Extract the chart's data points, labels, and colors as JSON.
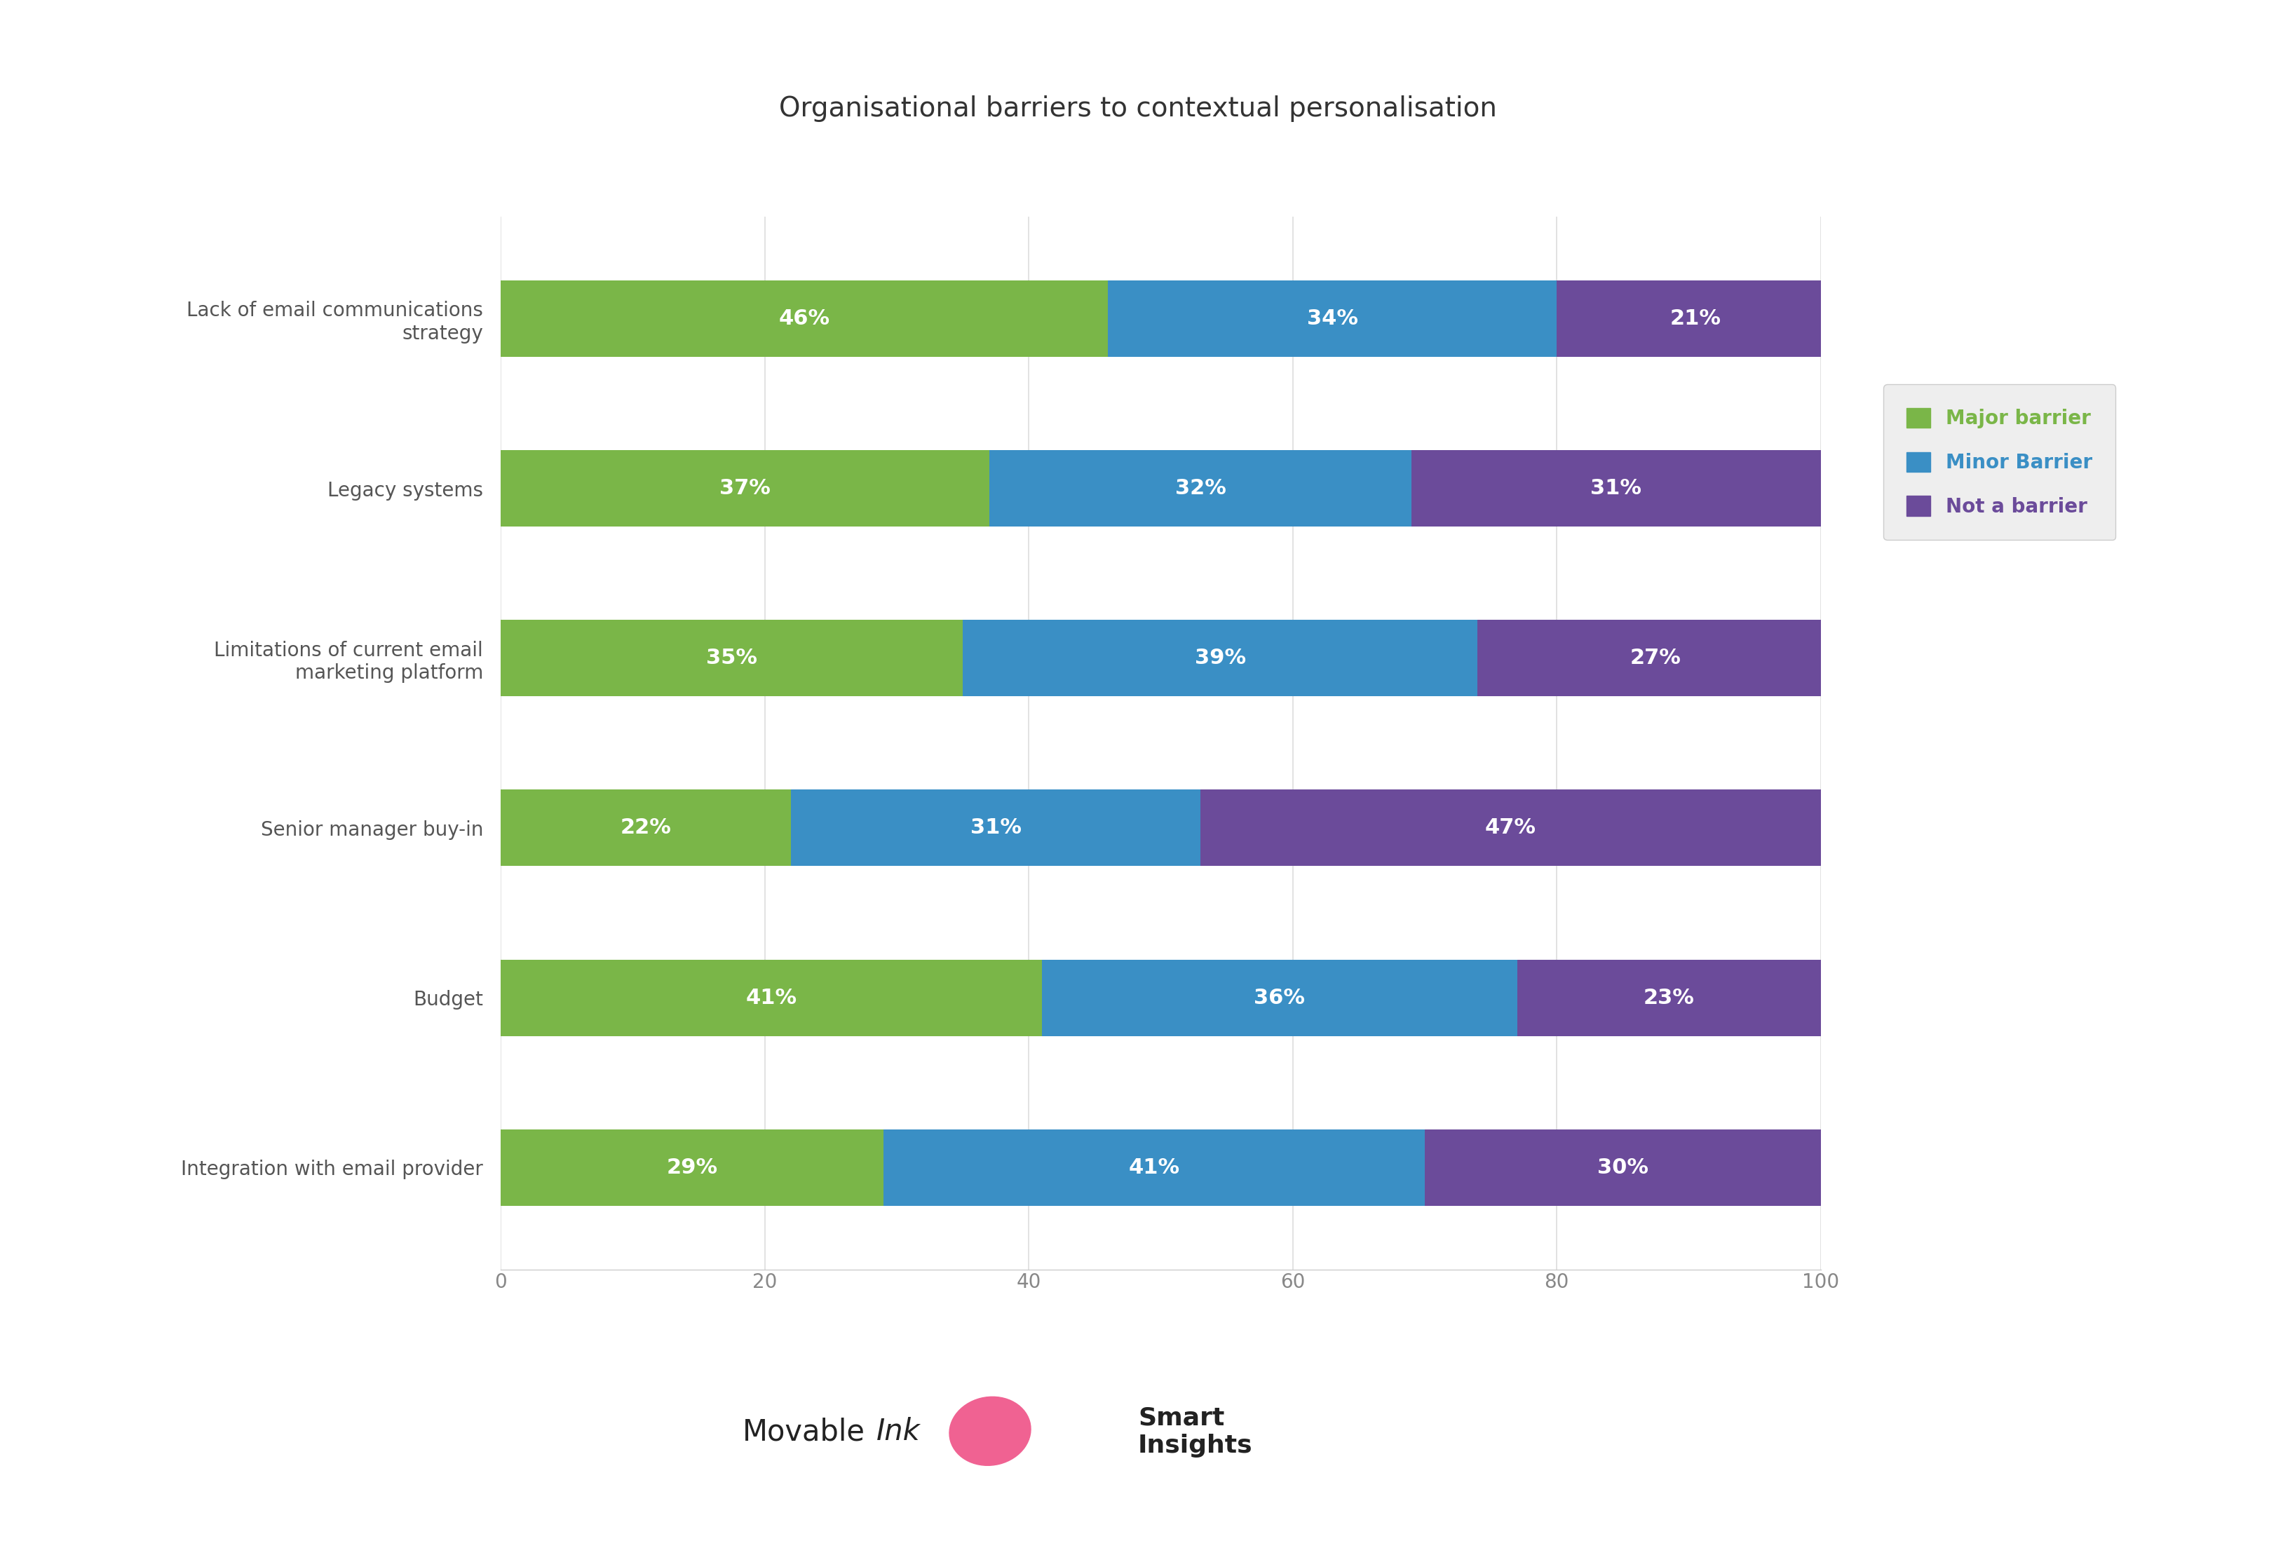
{
  "title": "Organisational barriers to contextual personalisation",
  "categories": [
    "Lack of email communications\nstrategy",
    "Legacy systems",
    "Limitations of current email\nmarketing platform",
    "Senior manager buy-in",
    "Budget",
    "Integration with email provider"
  ],
  "major_barrier": [
    46,
    37,
    35,
    22,
    41,
    29
  ],
  "minor_barrier": [
    34,
    32,
    39,
    31,
    36,
    41
  ],
  "not_a_barrier": [
    21,
    31,
    27,
    47,
    23,
    30
  ],
  "colors": {
    "major": "#7ab648",
    "minor": "#3a8fc5",
    "not": "#6b4b9a"
  },
  "legend_labels": [
    "Major barrier",
    "Minor Barrier",
    "Not a barrier"
  ],
  "legend_label_colors": [
    "#7ab648",
    "#3a8fc5",
    "#6b4b9a"
  ],
  "xlim": [
    0,
    100
  ],
  "xticks": [
    0,
    20,
    40,
    60,
    80,
    100
  ],
  "background_color": "#ffffff",
  "bar_height": 0.45,
  "title_fontsize": 28,
  "label_fontsize": 20,
  "tick_fontsize": 20,
  "value_fontsize": 22,
  "legend_fontsize": 20
}
